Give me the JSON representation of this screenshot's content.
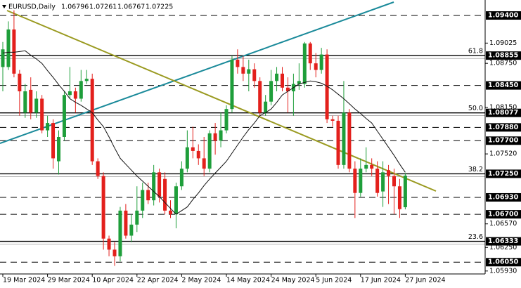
{
  "chart_data": {
    "type": "candlestick",
    "title": "EURUSD,Daily",
    "ohlc": [
      1.06796,
      1.07261,
      1.06767,
      1.07225
    ],
    "up_color": "#1e9e3a",
    "down_color": "#e3201c",
    "categories": [
      "19 Mar 2024",
      null,
      null,
      null,
      null,
      null,
      null,
      null,
      "29 Mar 2024",
      null,
      null,
      null,
      null,
      null,
      null,
      null,
      "10 Apr 2024",
      null,
      null,
      null,
      null,
      null,
      null,
      null,
      "22 Apr 2024",
      null,
      null,
      null,
      null,
      null,
      null,
      null,
      "2 May 2024",
      null,
      null,
      null,
      null,
      null,
      null,
      null,
      "14 May 2024",
      null,
      null,
      null,
      null,
      null,
      null,
      null,
      "24 May 2024",
      null,
      null,
      null,
      null,
      null,
      null,
      null,
      "5 Jun 2024",
      null,
      null,
      null,
      null,
      null,
      null,
      null,
      "17 Jun 2024",
      null,
      null,
      null,
      null,
      null,
      null,
      null,
      "27 Jun 2024"
    ],
    "open": [
      1.087,
      1.087,
      1.0921,
      1.0861,
      1.0808,
      1.0839,
      1.0808,
      1.0827,
      1.0784,
      1.0794,
      1.0742,
      1.0775,
      1.0832,
      1.0837,
      1.0827,
      1.0851,
      1.0854,
      1.0742,
      1.0722,
      1.0637,
      1.0622,
      1.0613,
      1.0675,
      1.0641,
      1.0656,
      1.0675,
      1.0703,
      1.0689,
      1.0727,
      1.0718,
      1.0675,
      1.067,
      1.0708,
      1.0732,
      1.0761,
      1.0756,
      1.0746,
      1.0732,
      1.078,
      1.077,
      1.0784,
      1.0813,
      1.088,
      1.087,
      1.0861,
      1.0867,
      1.0851,
      1.0808,
      1.0823,
      1.0851,
      1.0861,
      1.0842,
      1.0837,
      1.0847,
      1.0847,
      1.0902,
      1.0875,
      1.0866,
      1.0887,
      1.0799,
      1.0797,
      1.0737,
      1.0808,
      1.0732,
      1.0699,
      1.0732,
      1.0737,
      1.0732,
      1.0701,
      1.073,
      1.0722,
      1.0708,
      1.06796
    ],
    "high": [
      1.0904,
      1.0932,
      1.0947,
      1.0866,
      1.0847,
      1.0856,
      1.0837,
      1.0832,
      1.0804,
      1.0799,
      1.0784,
      1.0837,
      1.087,
      1.0842,
      1.0866,
      1.0866,
      1.0861,
      1.0746,
      1.0727,
      1.0641,
      1.0632,
      1.068,
      1.0684,
      1.067,
      1.0708,
      1.0713,
      1.0713,
      1.0737,
      1.0732,
      1.0727,
      1.0689,
      1.0713,
      1.0742,
      1.0784,
      1.0789,
      1.0765,
      1.0775,
      1.0784,
      1.0794,
      1.0808,
      1.0818,
      1.0885,
      1.0894,
      1.0885,
      1.088,
      1.0875,
      1.0856,
      1.0832,
      1.0866,
      1.087,
      1.087,
      1.0856,
      1.0861,
      1.0875,
      1.0904,
      1.0904,
      1.0889,
      1.0896,
      1.0894,
      1.0804,
      1.0804,
      1.0851,
      1.0813,
      1.0742,
      1.0746,
      1.0761,
      1.0746,
      1.0742,
      1.0742,
      1.0737,
      1.0732,
      1.0718,
      1.07261
    ],
    "low": [
      1.0837,
      1.0866,
      1.0856,
      1.0804,
      1.0801,
      1.0799,
      1.0801,
      1.078,
      1.0775,
      1.0732,
      1.0724,
      1.077,
      1.0827,
      1.0808,
      1.0823,
      1.0847,
      1.0737,
      1.0718,
      1.0622,
      1.0613,
      1.06,
      1.0606,
      1.0637,
      1.0632,
      1.0646,
      1.0665,
      1.0684,
      1.0682,
      1.0686,
      1.067,
      1.0665,
      1.0651,
      1.0703,
      1.0727,
      1.0746,
      1.0737,
      1.0722,
      1.0727,
      1.0751,
      1.0761,
      1.078,
      1.0808,
      1.0861,
      1.0851,
      1.0837,
      1.0842,
      1.0804,
      1.0804,
      1.0818,
      1.0837,
      1.0837,
      1.0808,
      1.0804,
      1.0839,
      1.0842,
      1.0866,
      1.0856,
      1.0861,
      1.0794,
      1.0789,
      1.0732,
      1.0732,
      1.0727,
      1.0665,
      1.0694,
      1.0727,
      1.0722,
      1.0694,
      1.068,
      1.0684,
      1.067,
      1.0665,
      1.06767
    ],
    "close": [
      1.0894,
      1.0921,
      1.0861,
      1.0837,
      1.0837,
      1.0808,
      1.0827,
      1.0784,
      1.0794,
      1.0746,
      1.0775,
      1.0832,
      1.0837,
      1.0827,
      1.0851,
      1.0854,
      1.0742,
      1.0722,
      1.0637,
      1.0622,
      1.0613,
      1.0675,
      1.0641,
      1.0656,
      1.0675,
      1.0703,
      1.0689,
      1.0727,
      1.0694,
      1.0675,
      1.067,
      1.0708,
      1.0732,
      1.0761,
      1.0756,
      1.0746,
      1.0732,
      1.078,
      1.077,
      1.0784,
      1.0813,
      1.088,
      1.087,
      1.0861,
      1.0867,
      1.0851,
      1.0808,
      1.0823,
      1.0851,
      1.0861,
      1.0842,
      1.0837,
      1.0847,
      1.0851,
      1.0902,
      1.0875,
      1.0866,
      1.0887,
      1.0799,
      1.0797,
      1.0737,
      1.0808,
      1.0732,
      1.0699,
      1.0732,
      1.0737,
      1.0732,
      1.0699,
      1.0727,
      1.0722,
      1.0708,
      1.0677,
      1.07225
    ],
    "ma": {
      "color": "#111111",
      "values": [
        1.0889,
        1.089,
        1.089,
        1.0891,
        1.0892,
        1.0886,
        1.0881,
        1.0875,
        1.0865,
        1.0856,
        1.0846,
        1.0837,
        1.0827,
        1.0822,
        1.0818,
        1.0813,
        1.0808,
        1.0798,
        1.0789,
        1.0775,
        1.076,
        1.0746,
        1.0738,
        1.073,
        1.0722,
        1.0715,
        1.0708,
        1.0701,
        1.0694,
        1.0686,
        1.0678,
        1.067,
        1.0675,
        1.068,
        1.069,
        1.0699,
        1.0709,
        1.0718,
        1.0726,
        1.0734,
        1.0742,
        1.0753,
        1.0764,
        1.0775,
        1.0785,
        1.0794,
        1.0804,
        1.0808,
        1.0813,
        1.0822,
        1.0832,
        1.0837,
        1.0842,
        1.0847,
        1.0849,
        1.0851,
        1.085,
        1.0848,
        1.0844,
        1.0839,
        1.0833,
        1.0827,
        1.082,
        1.0813,
        1.0807,
        1.08,
        1.0794,
        1.0783,
        1.0772,
        1.0761,
        1.075,
        1.0738,
        1.0727
      ]
    },
    "ylim": [
      1.0589,
      1.0961
    ],
    "yticks": [
      1.09025,
      {
        "value": 1.0875,
        "label": "1.08750"
      },
      {
        "value": 1.0815,
        "label": "1.08150"
      },
      {
        "value": 1.0752,
        "label": "1.07520"
      },
      {
        "value": 1.0657,
        "label": "1.06570"
      },
      {
        "value": 1.0625,
        "label": "1.06250"
      },
      {
        "value": 1.0593,
        "label": "1.05930"
      }
    ],
    "levels": [
      {
        "value": 1.094,
        "label": "1.09400",
        "style": "dashed"
      },
      {
        "value": 1.08855,
        "fib": "61.8",
        "style": "solid"
      },
      {
        "value": 1.0845,
        "label": "1.08450",
        "style": "dashed"
      },
      {
        "value": 1.08077,
        "fib": "50.0",
        "style": "solid"
      },
      {
        "value": 1.0788,
        "label": "1.07880",
        "style": "dashed"
      },
      {
        "value": 1.077,
        "label": "1.07700",
        "style": "dashed"
      },
      {
        "value": 1.0725,
        "label": "1.07250",
        "fib": "38.2",
        "style": "solid"
      },
      {
        "value": 1.0693,
        "label": "1.06930",
        "style": "dashed"
      },
      {
        "value": 1.067,
        "label": "1.06700",
        "style": "dashed"
      },
      {
        "value": 1.06333,
        "fib": "23.6",
        "style": "solid"
      },
      {
        "value": 1.0605,
        "label": "1.06050",
        "style": "dashed"
      }
    ]
  }
}
